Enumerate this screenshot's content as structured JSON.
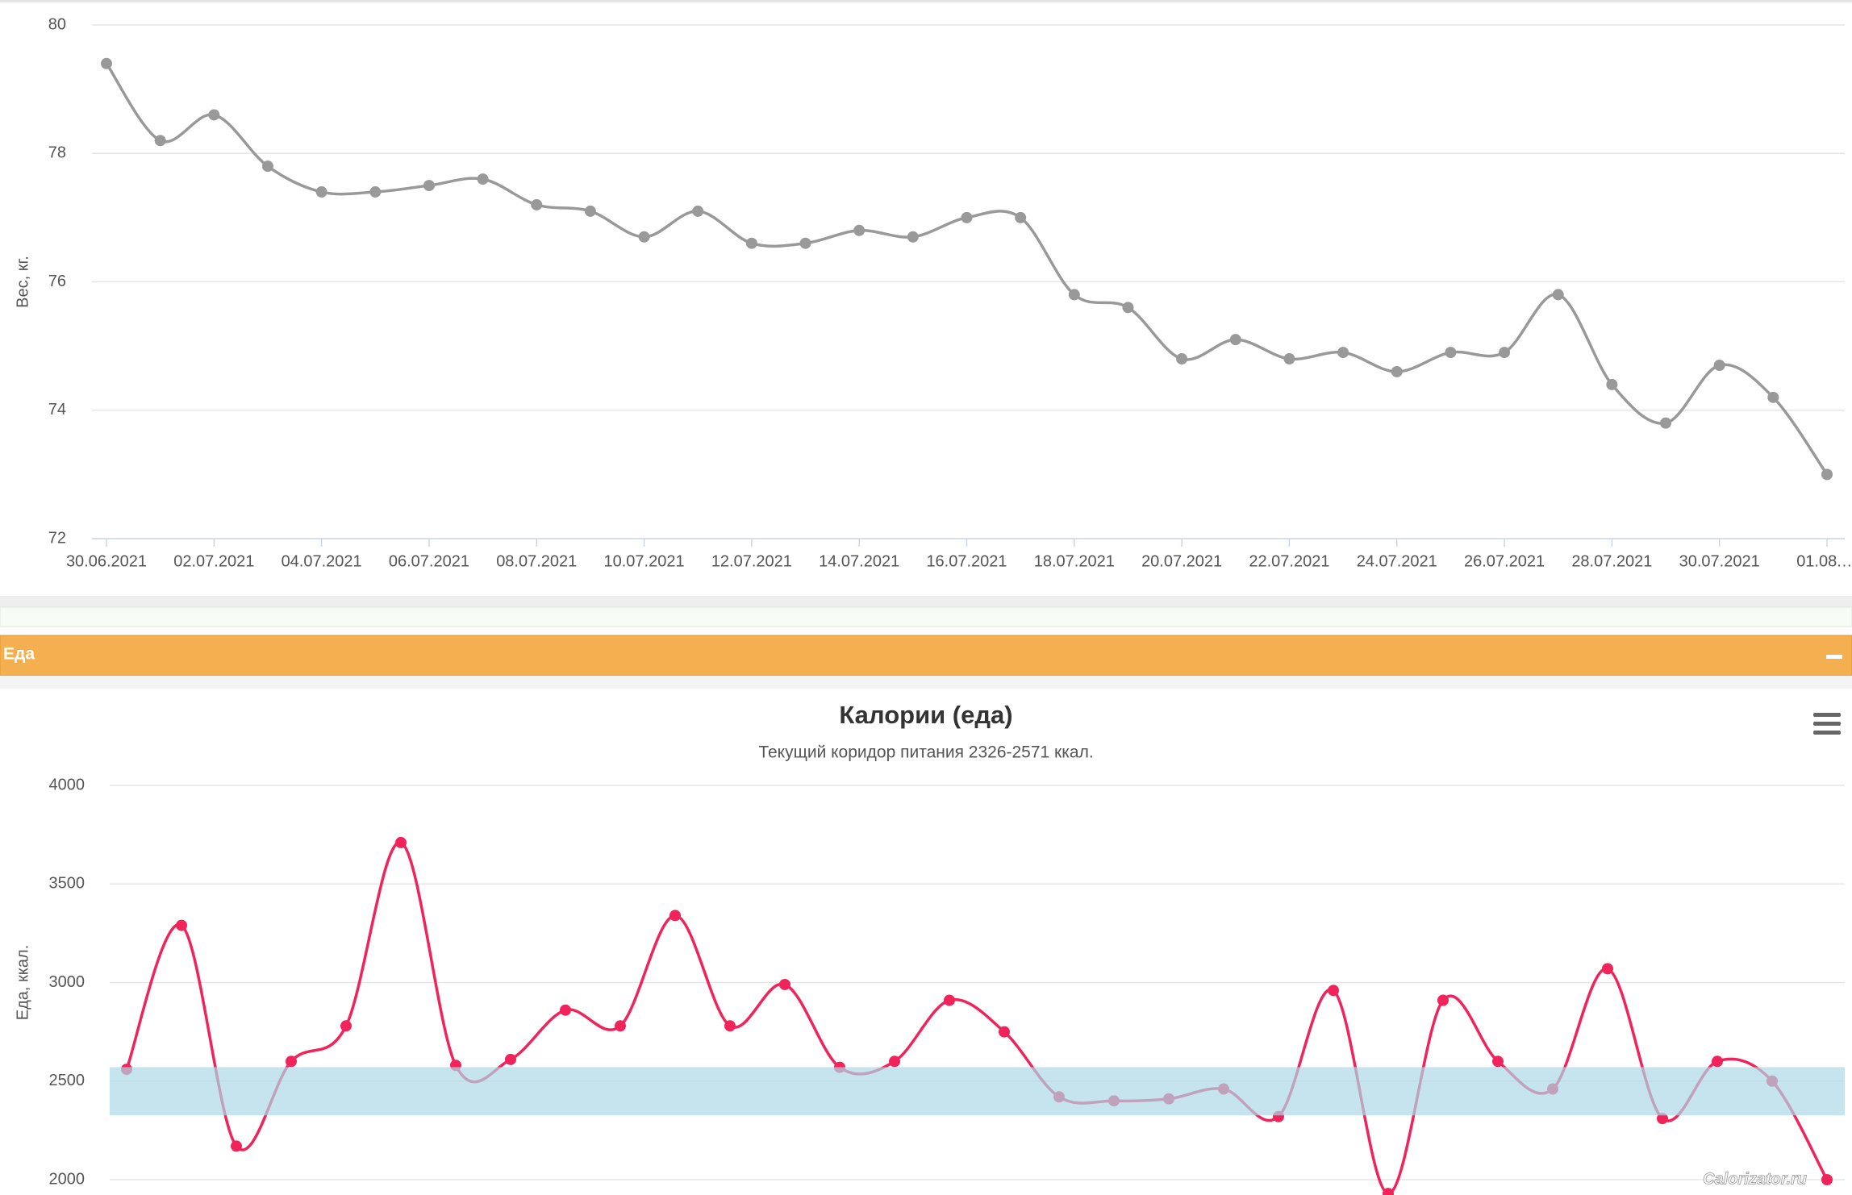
{
  "chart_data": [
    {
      "type": "line",
      "ylabel": "Вес, кг.",
      "categories": [
        "30.06.2021",
        null,
        "02.07.2021",
        null,
        "04.07.2021",
        null,
        "06.07.2021",
        null,
        "08.07.2021",
        null,
        "10.07.2021",
        null,
        "12.07.2021",
        null,
        "14.07.2021",
        null,
        "16.07.2021",
        null,
        "18.07.2021",
        null,
        "20.07.2021",
        null,
        "22.07.2021",
        null,
        "24.07.2021",
        null,
        "26.07.2021",
        null,
        "28.07.2021",
        null,
        "30.07.2021",
        null,
        "01.08.…"
      ],
      "values": [
        79.4,
        78.2,
        78.6,
        77.8,
        77.4,
        77.4,
        77.5,
        77.6,
        77.2,
        77.1,
        76.7,
        77.1,
        76.6,
        76.6,
        76.8,
        76.7,
        77.0,
        77.0,
        75.8,
        75.6,
        74.8,
        75.1,
        74.8,
        74.9,
        74.6,
        74.9,
        74.9,
        75.8,
        74.4,
        73.8,
        74.7,
        74.2,
        73.0
      ],
      "color": "#999999",
      "ylim": [
        72,
        80
      ],
      "yticks": [
        72,
        74,
        76,
        78,
        80
      ],
      "grid": true
    },
    {
      "type": "line",
      "title": "Калории (еда)",
      "subtitle": "Текущий коридор питания 2326-2571 ккал.",
      "ylabel": "Еда, ккал.",
      "values": [
        2560,
        3290,
        2170,
        2600,
        2780,
        3710,
        2580,
        2610,
        2860,
        2780,
        3340,
        2780,
        2990,
        2570,
        2600,
        2910,
        2750,
        2420,
        2400,
        2410,
        2460,
        2320,
        2960,
        1930,
        2910,
        2600,
        2460,
        3070,
        2310,
        2600,
        2500,
        2000
      ],
      "color": "#f0245a",
      "band": {
        "from": 2326,
        "to": 2571,
        "color": "#add8e6"
      },
      "ylim": [
        2000,
        4000
      ],
      "yticks": [
        2000,
        2500,
        3000,
        3500,
        4000
      ],
      "grid": true
    }
  ],
  "panel": {
    "title": "Еда"
  },
  "watermark": "Calorizator.ru"
}
